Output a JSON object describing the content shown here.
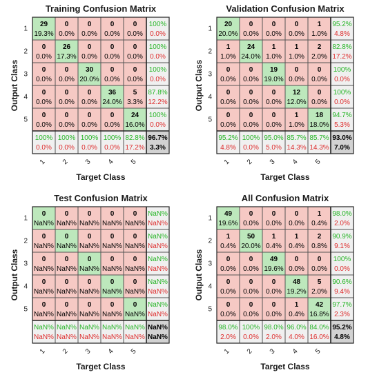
{
  "colors": {
    "correct": "#bde8bc",
    "wrong": "#f6c9c4",
    "summary": "#f0f0f0",
    "corner": "#d2d2d2",
    "green_text": "#26b526",
    "red_text": "#de2e2e",
    "grid": "#555555"
  },
  "chart_data": [
    {
      "type": "heatmap",
      "title": "Training Confusion Matrix",
      "xlabel": "Target Class",
      "ylabel": "Output Class",
      "x_ticks": [
        "1",
        "2",
        "3",
        "4",
        "5"
      ],
      "y_ticks": [
        "1",
        "2",
        "3",
        "4",
        "5"
      ],
      "cells": [
        [
          {
            "count": "29",
            "pct": "19.3%"
          },
          {
            "count": "0",
            "pct": "0.0%"
          },
          {
            "count": "0",
            "pct": "0.0%"
          },
          {
            "count": "0",
            "pct": "0.0%"
          },
          {
            "count": "0",
            "pct": "0.0%"
          }
        ],
        [
          {
            "count": "0",
            "pct": "0.0%"
          },
          {
            "count": "26",
            "pct": "17.3%"
          },
          {
            "count": "0",
            "pct": "0.0%"
          },
          {
            "count": "0",
            "pct": "0.0%"
          },
          {
            "count": "0",
            "pct": "0.0%"
          }
        ],
        [
          {
            "count": "0",
            "pct": "0.0%"
          },
          {
            "count": "0",
            "pct": "0.0%"
          },
          {
            "count": "30",
            "pct": "20.0%"
          },
          {
            "count": "0",
            "pct": "0.0%"
          },
          {
            "count": "0",
            "pct": "0.0%"
          }
        ],
        [
          {
            "count": "0",
            "pct": "0.0%"
          },
          {
            "count": "0",
            "pct": "0.0%"
          },
          {
            "count": "0",
            "pct": "0.0%"
          },
          {
            "count": "36",
            "pct": "24.0%"
          },
          {
            "count": "5",
            "pct": "3.3%"
          }
        ],
        [
          {
            "count": "0",
            "pct": "0.0%"
          },
          {
            "count": "0",
            "pct": "0.0%"
          },
          {
            "count": "0",
            "pct": "0.0%"
          },
          {
            "count": "0",
            "pct": "0.0%"
          },
          {
            "count": "24",
            "pct": "16.0%"
          }
        ]
      ],
      "row_summary": [
        [
          "100%",
          "0.0%"
        ],
        [
          "100%",
          "0.0%"
        ],
        [
          "100%",
          "0.0%"
        ],
        [
          "87.8%",
          "12.2%"
        ],
        [
          "100%",
          "0.0%"
        ]
      ],
      "col_summary": [
        [
          "100%",
          "0.0%"
        ],
        [
          "100%",
          "0.0%"
        ],
        [
          "100%",
          "0.0%"
        ],
        [
          "100%",
          "0.0%"
        ],
        [
          "82.8%",
          "17.2%"
        ]
      ],
      "overall": [
        "96.7%",
        "3.3%"
      ]
    },
    {
      "type": "heatmap",
      "title": "Validation Confusion Matrix",
      "xlabel": "Target Class",
      "ylabel": "Output Class",
      "x_ticks": [
        "1",
        "2",
        "3",
        "4",
        "5"
      ],
      "y_ticks": [
        "1",
        "2",
        "3",
        "4",
        "5"
      ],
      "cells": [
        [
          {
            "count": "20",
            "pct": "20.0%"
          },
          {
            "count": "0",
            "pct": "0.0%"
          },
          {
            "count": "0",
            "pct": "0.0%"
          },
          {
            "count": "0",
            "pct": "0.0%"
          },
          {
            "count": "1",
            "pct": "1.0%"
          }
        ],
        [
          {
            "count": "1",
            "pct": "1.0%"
          },
          {
            "count": "24",
            "pct": "24.0%"
          },
          {
            "count": "1",
            "pct": "1.0%"
          },
          {
            "count": "1",
            "pct": "1.0%"
          },
          {
            "count": "2",
            "pct": "2.0%"
          }
        ],
        [
          {
            "count": "0",
            "pct": "0.0%"
          },
          {
            "count": "0",
            "pct": "0.0%"
          },
          {
            "count": "19",
            "pct": "19.0%"
          },
          {
            "count": "0",
            "pct": "0.0%"
          },
          {
            "count": "0",
            "pct": "0.0%"
          }
        ],
        [
          {
            "count": "0",
            "pct": "0.0%"
          },
          {
            "count": "0",
            "pct": "0.0%"
          },
          {
            "count": "0",
            "pct": "0.0%"
          },
          {
            "count": "12",
            "pct": "12.0%"
          },
          {
            "count": "0",
            "pct": "0.0%"
          }
        ],
        [
          {
            "count": "0",
            "pct": "0.0%"
          },
          {
            "count": "0",
            "pct": "0.0%"
          },
          {
            "count": "0",
            "pct": "0.0%"
          },
          {
            "count": "1",
            "pct": "1.0%"
          },
          {
            "count": "18",
            "pct": "18.0%"
          }
        ]
      ],
      "row_summary": [
        [
          "95.2%",
          "4.8%"
        ],
        [
          "82.8%",
          "17.2%"
        ],
        [
          "100%",
          "0.0%"
        ],
        [
          "100%",
          "0.0%"
        ],
        [
          "94.7%",
          "5.3%"
        ]
      ],
      "col_summary": [
        [
          "95.2%",
          "4.8%"
        ],
        [
          "100%",
          "0.0%"
        ],
        [
          "95.0%",
          "5.0%"
        ],
        [
          "85.7%",
          "14.3%"
        ],
        [
          "85.7%",
          "14.3%"
        ]
      ],
      "overall": [
        "93.0%",
        "7.0%"
      ]
    },
    {
      "type": "heatmap",
      "title": "Test Confusion Matrix",
      "xlabel": "Target Class",
      "ylabel": "Output Class",
      "x_ticks": [
        "1",
        "2",
        "3",
        "4",
        "5"
      ],
      "y_ticks": [
        "1",
        "2",
        "3",
        "4",
        "5"
      ],
      "cells": [
        [
          {
            "count": "0",
            "pct": "NaN%"
          },
          {
            "count": "0",
            "pct": "NaN%"
          },
          {
            "count": "0",
            "pct": "NaN%"
          },
          {
            "count": "0",
            "pct": "NaN%"
          },
          {
            "count": "0",
            "pct": "NaN%"
          }
        ],
        [
          {
            "count": "0",
            "pct": "NaN%"
          },
          {
            "count": "0",
            "pct": "NaN%"
          },
          {
            "count": "0",
            "pct": "NaN%"
          },
          {
            "count": "0",
            "pct": "NaN%"
          },
          {
            "count": "0",
            "pct": "NaN%"
          }
        ],
        [
          {
            "count": "0",
            "pct": "NaN%"
          },
          {
            "count": "0",
            "pct": "NaN%"
          },
          {
            "count": "0",
            "pct": "NaN%"
          },
          {
            "count": "0",
            "pct": "NaN%"
          },
          {
            "count": "0",
            "pct": "NaN%"
          }
        ],
        [
          {
            "count": "0",
            "pct": "NaN%"
          },
          {
            "count": "0",
            "pct": "NaN%"
          },
          {
            "count": "0",
            "pct": "NaN%"
          },
          {
            "count": "0",
            "pct": "NaN%"
          },
          {
            "count": "0",
            "pct": "NaN%"
          }
        ],
        [
          {
            "count": "0",
            "pct": "NaN%"
          },
          {
            "count": "0",
            "pct": "NaN%"
          },
          {
            "count": "0",
            "pct": "NaN%"
          },
          {
            "count": "0",
            "pct": "NaN%"
          },
          {
            "count": "0",
            "pct": "NaN%"
          }
        ]
      ],
      "row_summary": [
        [
          "NaN%",
          "NaN%"
        ],
        [
          "NaN%",
          "NaN%"
        ],
        [
          "NaN%",
          "NaN%"
        ],
        [
          "NaN%",
          "NaN%"
        ],
        [
          "NaN%",
          "NaN%"
        ]
      ],
      "col_summary": [
        [
          "NaN%",
          "NaN%"
        ],
        [
          "NaN%",
          "NaN%"
        ],
        [
          "NaN%",
          "NaN%"
        ],
        [
          "NaN%",
          "NaN%"
        ],
        [
          "NaN%",
          "NaN%"
        ]
      ],
      "overall": [
        "NaN%",
        "NaN%"
      ]
    },
    {
      "type": "heatmap",
      "title": "All Confusion Matrix",
      "xlabel": "Target Class",
      "ylabel": "Output Class",
      "x_ticks": [
        "1",
        "2",
        "3",
        "4",
        "5"
      ],
      "y_ticks": [
        "1",
        "2",
        "3",
        "4",
        "5"
      ],
      "cells": [
        [
          {
            "count": "49",
            "pct": "19.6%"
          },
          {
            "count": "0",
            "pct": "0.0%"
          },
          {
            "count": "0",
            "pct": "0.0%"
          },
          {
            "count": "0",
            "pct": "0.0%"
          },
          {
            "count": "1",
            "pct": "0.4%"
          }
        ],
        [
          {
            "count": "1",
            "pct": "0.4%"
          },
          {
            "count": "50",
            "pct": "20.0%"
          },
          {
            "count": "1",
            "pct": "0.4%"
          },
          {
            "count": "1",
            "pct": "0.4%"
          },
          {
            "count": "2",
            "pct": "0.8%"
          }
        ],
        [
          {
            "count": "0",
            "pct": "0.0%"
          },
          {
            "count": "0",
            "pct": "0.0%"
          },
          {
            "count": "49",
            "pct": "19.6%"
          },
          {
            "count": "0",
            "pct": "0.0%"
          },
          {
            "count": "0",
            "pct": "0.0%"
          }
        ],
        [
          {
            "count": "0",
            "pct": "0.0%"
          },
          {
            "count": "0",
            "pct": "0.0%"
          },
          {
            "count": "0",
            "pct": "0.0%"
          },
          {
            "count": "48",
            "pct": "19.2%"
          },
          {
            "count": "5",
            "pct": "2.0%"
          }
        ],
        [
          {
            "count": "0",
            "pct": "0.0%"
          },
          {
            "count": "0",
            "pct": "0.0%"
          },
          {
            "count": "0",
            "pct": "0.0%"
          },
          {
            "count": "1",
            "pct": "0.4%"
          },
          {
            "count": "42",
            "pct": "16.8%"
          }
        ]
      ],
      "row_summary": [
        [
          "98.0%",
          "2.0%"
        ],
        [
          "90.9%",
          "9.1%"
        ],
        [
          "100%",
          "0.0%"
        ],
        [
          "90.6%",
          "9.4%"
        ],
        [
          "97.7%",
          "2.3%"
        ]
      ],
      "col_summary": [
        [
          "98.0%",
          "2.0%"
        ],
        [
          "100%",
          "0.0%"
        ],
        [
          "98.0%",
          "2.0%"
        ],
        [
          "96.0%",
          "4.0%"
        ],
        [
          "84.0%",
          "16.0%"
        ]
      ],
      "overall": [
        "95.2%",
        "4.8%"
      ]
    }
  ]
}
